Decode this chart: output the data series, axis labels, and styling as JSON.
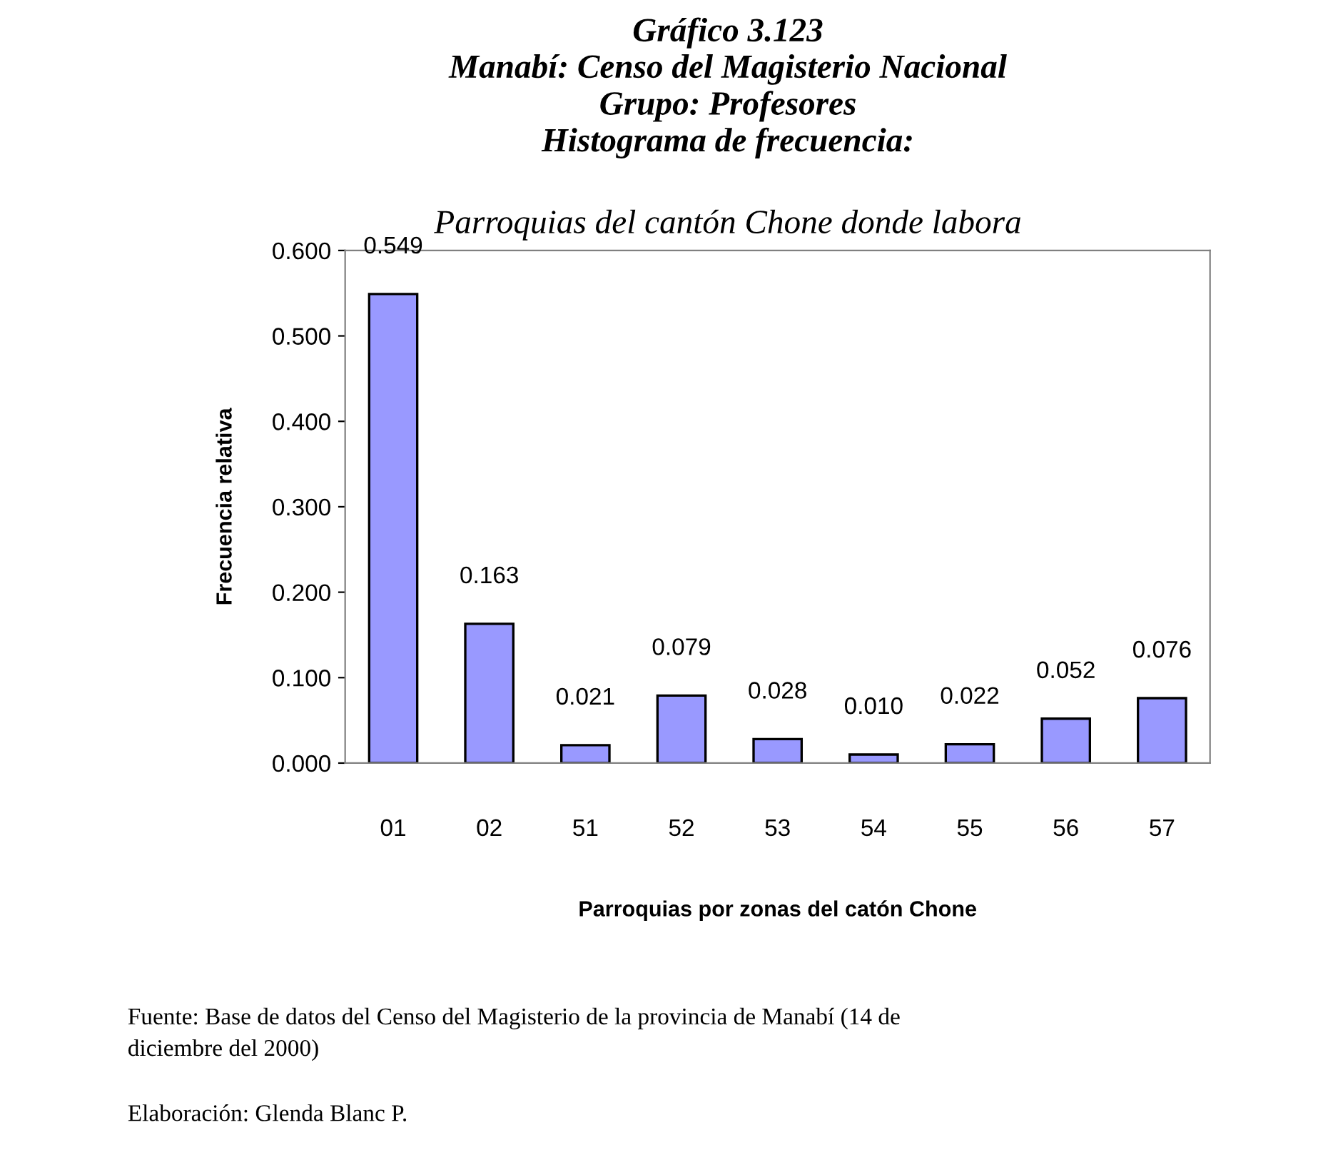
{
  "chart_data": {
    "type": "bar",
    "title": "Gráfico 3.123\nManabí: Censo del Magisterio Nacional\nGrupo: Profesores\nHistograma de frecuencia:",
    "subtitle": "Parroquias del cantón Chone donde labora",
    "xlabel": "Parroquias por zonas del catón Chone",
    "ylabel": "Frecuencia relativa",
    "categories": [
      "01",
      "02",
      "51",
      "52",
      "53",
      "54",
      "55",
      "56",
      "57"
    ],
    "values": [
      0.549,
      0.163,
      0.021,
      0.079,
      0.028,
      0.01,
      0.022,
      0.052,
      0.076
    ],
    "color": "#9999ff",
    "value_labels": [
      "0.549",
      "0.163",
      "0.021",
      "0.079",
      "0.028",
      "0.010",
      "0.022",
      "0.052",
      "0.076"
    ],
    "ylim": [
      0,
      0.6
    ],
    "yticks": [
      {
        "value": 0,
        "label": "0.000"
      },
      {
        "value": 0.1,
        "label": "0.100"
      },
      {
        "value": 0.2,
        "label": "0.200"
      },
      {
        "value": 0.3,
        "label": "0.300"
      },
      {
        "value": 0.4,
        "label": "0.400"
      },
      {
        "value": 0.5,
        "label": "0.500"
      },
      {
        "value": 0.6,
        "label": "0.600"
      }
    ],
    "grid": false,
    "legend": false,
    "annotations": [
      "Fuente: Base de datos del Censo del Magisterio de la provincia de Manabí (14 de\ndiciembre del 2000)",
      "Elaboración: Glenda Blanc P."
    ]
  }
}
